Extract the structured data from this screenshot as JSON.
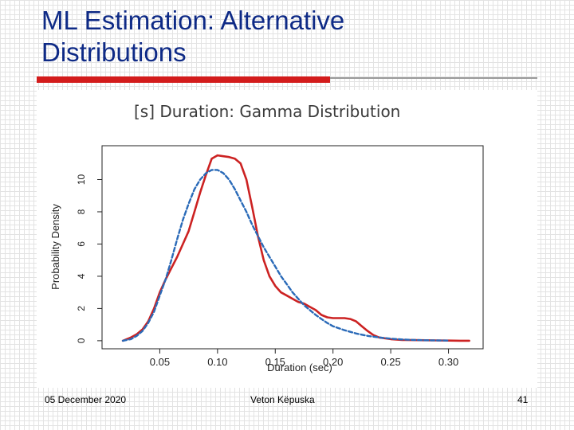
{
  "slide": {
    "title_line1": "ML Estimation: Alternative",
    "title_line2": "Distributions"
  },
  "footer": {
    "date": "05 December 2020",
    "author": "Veton Këpuska",
    "page_number": "41"
  },
  "colors": {
    "title": "#0e2a86",
    "accent_red": "#d31c1c",
    "empirical_series": "#cc2222",
    "gamma_fit_series": "#2a6ab8"
  },
  "chart_data": {
    "type": "line",
    "title": "[s] Duration: Gamma Distribution",
    "xlabel": "Duration (sec)",
    "ylabel": "Probability Density",
    "xlim": [
      0.0,
      0.33
    ],
    "ylim": [
      -0.5,
      12.1
    ],
    "x_ticks": [
      0.05,
      0.1,
      0.15,
      0.2,
      0.25,
      0.3
    ],
    "x_tick_labels": [
      "0.05",
      "0.10",
      "0.15",
      "0.20",
      "0.25",
      "0.30"
    ],
    "y_ticks": [
      0,
      2,
      4,
      6,
      8,
      10
    ],
    "y_tick_labels": [
      "0",
      "2",
      "4",
      "6",
      "8",
      "10"
    ],
    "grid": false,
    "series": [
      {
        "style": "solid",
        "x": [
          0.018,
          0.025,
          0.03,
          0.035,
          0.04,
          0.045,
          0.05,
          0.055,
          0.06,
          0.065,
          0.07,
          0.075,
          0.08,
          0.085,
          0.09,
          0.095,
          0.1,
          0.105,
          0.11,
          0.115,
          0.12,
          0.125,
          0.13,
          0.135,
          0.14,
          0.145,
          0.15,
          0.155,
          0.16,
          0.165,
          0.17,
          0.175,
          0.18,
          0.185,
          0.19,
          0.195,
          0.2,
          0.205,
          0.21,
          0.215,
          0.22,
          0.225,
          0.23,
          0.235,
          0.24,
          0.25,
          0.26,
          0.27,
          0.28,
          0.29,
          0.3,
          0.31,
          0.318
        ],
        "y": [
          0.0,
          0.2,
          0.4,
          0.7,
          1.2,
          2.0,
          3.0,
          3.8,
          4.5,
          5.2,
          6.0,
          6.8,
          8.0,
          9.2,
          10.3,
          11.3,
          11.5,
          11.45,
          11.4,
          11.3,
          11.0,
          10.0,
          8.3,
          6.5,
          5.0,
          4.0,
          3.4,
          3.0,
          2.8,
          2.6,
          2.4,
          2.3,
          2.1,
          1.9,
          1.6,
          1.45,
          1.4,
          1.4,
          1.4,
          1.35,
          1.2,
          0.9,
          0.6,
          0.35,
          0.2,
          0.1,
          0.05,
          0.04,
          0.03,
          0.02,
          0.01,
          0.0,
          0.0
        ]
      },
      {
        "style": "dashed",
        "x": [
          0.018,
          0.025,
          0.03,
          0.035,
          0.04,
          0.045,
          0.05,
          0.055,
          0.06,
          0.065,
          0.07,
          0.075,
          0.08,
          0.085,
          0.09,
          0.095,
          0.1,
          0.105,
          0.11,
          0.115,
          0.12,
          0.125,
          0.13,
          0.135,
          0.14,
          0.145,
          0.15,
          0.155,
          0.16,
          0.165,
          0.17,
          0.175,
          0.18,
          0.185,
          0.19,
          0.195,
          0.2,
          0.21,
          0.22,
          0.23,
          0.24,
          0.25,
          0.26,
          0.27,
          0.28,
          0.29,
          0.3
        ],
        "y": [
          0.0,
          0.1,
          0.3,
          0.6,
          1.1,
          1.8,
          2.8,
          3.8,
          5.0,
          6.3,
          7.5,
          8.5,
          9.4,
          10.0,
          10.4,
          10.6,
          10.6,
          10.4,
          10.0,
          9.4,
          8.7,
          8.0,
          7.2,
          6.5,
          5.8,
          5.2,
          4.6,
          4.0,
          3.5,
          3.0,
          2.6,
          2.2,
          1.9,
          1.6,
          1.35,
          1.1,
          0.9,
          0.65,
          0.45,
          0.3,
          0.2,
          0.13,
          0.08,
          0.05,
          0.03,
          0.02,
          0.01
        ]
      }
    ]
  }
}
